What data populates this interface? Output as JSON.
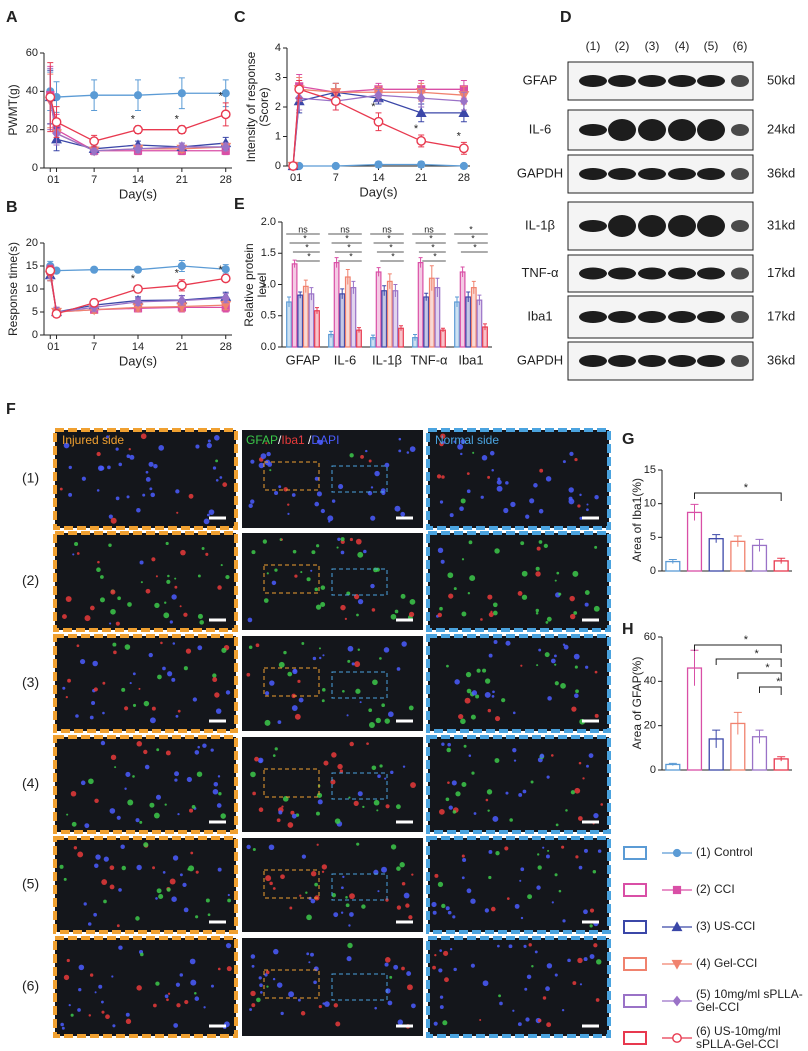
{
  "panel_labels": [
    "A",
    "B",
    "C",
    "D",
    "E",
    "F",
    "G",
    "H"
  ],
  "chart_data": [
    {
      "type": "line",
      "y_label": "PWMT(g)",
      "x_label": "Day(s)",
      "x": [
        0,
        1,
        7,
        14,
        21,
        28
      ],
      "xlim": [
        -1,
        29
      ],
      "xticks": [
        0,
        1,
        7,
        14,
        21,
        28
      ],
      "ylim": [
        0,
        60
      ],
      "yticks": [
        0,
        20,
        40,
        60
      ],
      "series": [
        {
          "name": "(1) Control",
          "color": "#5b9bd5",
          "marker": "circle",
          "values": [
            40,
            37,
            38,
            38,
            39,
            39
          ],
          "errors": [
            10,
            8,
            8,
            8,
            8,
            7
          ]
        },
        {
          "name": "(2) CCI",
          "color": "#d94fa6",
          "marker": "square",
          "values": [
            38,
            20,
            9,
            9,
            9,
            9
          ],
          "errors": [
            15,
            8,
            2,
            2,
            2,
            2
          ]
        },
        {
          "name": "(3) US-CCI",
          "color": "#3b47a8",
          "marker": "triangle",
          "values": [
            37,
            15,
            10,
            12,
            11,
            13
          ],
          "errors": [
            14,
            6,
            2,
            2,
            2,
            3
          ]
        },
        {
          "name": "(4) Gel-CCI",
          "color": "#f0826e",
          "marker": "triangle-down",
          "values": [
            35,
            18,
            9,
            10,
            10,
            11
          ],
          "errors": [
            14,
            6,
            2,
            2,
            2,
            2
          ]
        },
        {
          "name": "(5) 10mg/ml sPLLA-Gel-CCI",
          "color": "#9a72c7",
          "marker": "diamond",
          "values": [
            36,
            18,
            9,
            10,
            11,
            11
          ],
          "errors": [
            16,
            6,
            2,
            2,
            2,
            2
          ]
        },
        {
          "name": "(6) US-10mg/ml sPLLA-Gel-CCI",
          "color": "#e8394f",
          "marker": "open-circle",
          "values": [
            37,
            24,
            14,
            20,
            20,
            28
          ],
          "errors": [
            18,
            8,
            3,
            2,
            2,
            6
          ]
        }
      ],
      "annotations": [
        {
          "text": "*",
          "x": 14,
          "series": 5
        },
        {
          "text": "*",
          "x": 21,
          "series": 5
        },
        {
          "text": "*",
          "x": 28,
          "series": 5
        }
      ]
    },
    {
      "type": "line",
      "y_label": "Response time(s)",
      "x_label": "Day(s)",
      "x": [
        0,
        1,
        7,
        14,
        21,
        28
      ],
      "xlim": [
        -1,
        29
      ],
      "xticks": [
        0,
        1,
        7,
        14,
        21,
        28
      ],
      "ylim": [
        0,
        20
      ],
      "yticks": [
        0,
        5,
        10,
        15,
        20
      ],
      "series": [
        {
          "color": "#5b9bd5",
          "marker": "circle",
          "values": [
            15,
            14,
            14.2,
            14.2,
            15,
            14.3
          ],
          "errors": [
            1,
            0.5,
            0.4,
            0.5,
            1.2,
            1
          ]
        },
        {
          "color": "#d94fa6",
          "marker": "square",
          "values": [
            14,
            5,
            5.5,
            5.8,
            6,
            6
          ],
          "errors": [
            1.2,
            1,
            0.8,
            0.8,
            1,
            1
          ]
        },
        {
          "color": "#3b47a8",
          "marker": "triangle",
          "values": [
            13,
            5,
            6.5,
            7.5,
            7.6,
            8.3
          ],
          "errors": [
            1.2,
            1,
            0.8,
            0.8,
            1,
            1
          ]
        },
        {
          "color": "#f0826e",
          "marker": "triangle-down",
          "values": [
            13,
            5,
            5.5,
            6,
            6.2,
            6.5
          ],
          "errors": [
            1.2,
            1,
            0.8,
            0.8,
            1,
            1
          ]
        },
        {
          "color": "#9a72c7",
          "marker": "diamond",
          "values": [
            13.5,
            5,
            6,
            7.2,
            7.5,
            8
          ],
          "errors": [
            1.2,
            1,
            0.8,
            0.8,
            1,
            1
          ]
        },
        {
          "color": "#e8394f",
          "marker": "open-circle",
          "values": [
            14,
            4.6,
            7,
            10,
            10.8,
            12.3
          ],
          "errors": [
            1,
            0.8,
            0.8,
            0.8,
            1.2,
            0.5
          ]
        }
      ],
      "annotations": [
        {
          "text": "*",
          "x": 14,
          "series": 5
        },
        {
          "text": "*",
          "x": 21,
          "series": 5
        },
        {
          "text": "*",
          "x": 28,
          "series": 5
        }
      ]
    },
    {
      "type": "line",
      "y_label": "Intensity of response (Score)",
      "x_label": "Day(s)",
      "x": [
        0,
        1,
        7,
        14,
        21,
        28
      ],
      "xlim": [
        -1,
        29
      ],
      "xticks": [
        0,
        1,
        7,
        14,
        21,
        28
      ],
      "ylim": [
        0,
        4
      ],
      "yticks": [
        0,
        1,
        2,
        3,
        4
      ],
      "series": [
        {
          "color": "#5b9bd5",
          "marker": "circle",
          "values": [
            0,
            0,
            0,
            0.05,
            0.05,
            0
          ],
          "errors": [
            0.05,
            0.05,
            0.05,
            0.1,
            0.1,
            0.05
          ]
        },
        {
          "color": "#d94fa6",
          "marker": "square",
          "values": [
            0,
            2.7,
            2.5,
            2.6,
            2.6,
            2.6
          ],
          "errors": [
            0.1,
            0.4,
            0.3,
            0.2,
            0.3,
            0.3
          ]
        },
        {
          "color": "#3b47a8",
          "marker": "triangle",
          "values": [
            0,
            2.2,
            2.5,
            2.3,
            1.8,
            1.8
          ],
          "errors": [
            0.1,
            0.4,
            0.3,
            0.2,
            0.3,
            0.3
          ]
        },
        {
          "color": "#f0826e",
          "marker": "triangle-down",
          "values": [
            0,
            2.6,
            2.5,
            2.5,
            2.5,
            2.4
          ],
          "errors": [
            0.1,
            0.4,
            0.3,
            0.2,
            0.3,
            0.3
          ]
        },
        {
          "color": "#9a72c7",
          "marker": "diamond",
          "values": [
            0,
            2.3,
            2.2,
            2.4,
            2.3,
            2.2
          ],
          "errors": [
            0.1,
            0.4,
            0.3,
            0.2,
            0.3,
            0.3
          ]
        },
        {
          "color": "#e8394f",
          "marker": "open-circle",
          "values": [
            0,
            2.6,
            2.2,
            1.5,
            0.85,
            0.6
          ],
          "errors": [
            0.1,
            0.3,
            0.3,
            0.3,
            0.2,
            0.2
          ]
        }
      ],
      "annotations": [
        {
          "text": "*",
          "x": 14,
          "series": 5
        },
        {
          "text": "*",
          "x": 21,
          "series": 5
        },
        {
          "text": "*",
          "x": 28,
          "series": 5
        }
      ]
    },
    {
      "type": "grouped-bar",
      "y_label": "Relative protein level",
      "categories": [
        "GFAP",
        "IL-6",
        "IL-1β",
        "TNF-α",
        "Iba1"
      ],
      "ylim": [
        0,
        2
      ],
      "yticks": [
        {
          "value": 0,
          "label": "0.0"
        },
        {
          "value": 0.5,
          "label": "0.5"
        },
        {
          "value": 1,
          "label": "1.0"
        },
        {
          "value": 1.5,
          "label": "1.5"
        },
        {
          "value": 2,
          "label": "2.0"
        }
      ],
      "fill_opacity": 0.3,
      "series": [
        {
          "color": "#5b9bd5",
          "values": [
            0.72,
            0.2,
            0.15,
            0.15,
            0.72
          ],
          "errors": [
            0.08,
            0.05,
            0.04,
            0.05,
            0.08
          ]
        },
        {
          "color": "#d94fa6",
          "values": [
            1.33,
            1.35,
            1.2,
            1.35,
            1.2
          ],
          "errors": [
            0.06,
            0.08,
            0.07,
            0.08,
            0.08
          ]
        },
        {
          "color": "#3b47a8",
          "values": [
            0.83,
            0.85,
            0.9,
            0.8,
            0.8
          ],
          "errors": [
            0.05,
            0.08,
            0.08,
            0.06,
            0.08
          ]
        },
        {
          "color": "#f0826e",
          "values": [
            0.97,
            1.12,
            1.05,
            1.1,
            0.95
          ],
          "errors": [
            0.1,
            0.12,
            0.12,
            0.2,
            0.1
          ]
        },
        {
          "color": "#9a72c7",
          "values": [
            0.85,
            0.95,
            0.9,
            0.95,
            0.75
          ],
          "errors": [
            0.1,
            0.1,
            0.1,
            0.15,
            0.08
          ]
        },
        {
          "color": "#e8394f",
          "values": [
            0.58,
            0.27,
            0.3,
            0.27,
            0.32
          ],
          "errors": [
            0.05,
            0.04,
            0.04,
            0.03,
            0.05
          ]
        }
      ],
      "significance": [
        [
          "ns",
          "*",
          "*",
          "*"
        ],
        [
          "ns",
          "*",
          "*",
          "*"
        ],
        [
          "ns",
          "*",
          "*",
          "*"
        ],
        [
          "ns",
          "*",
          "*",
          "*"
        ],
        [
          "*",
          "*",
          "*"
        ]
      ]
    },
    {
      "type": "bar",
      "y_label": "Area of Iba1(%)",
      "ylim": [
        0,
        15
      ],
      "yticks": [
        0,
        5,
        10,
        15
      ],
      "fill_opacity": 0,
      "values": [
        1.4,
        8.7,
        4.8,
        4.4,
        3.8,
        1.5
      ],
      "errors": [
        0.3,
        1.2,
        0.6,
        0.8,
        0.9,
        0.4
      ],
      "colors": [
        "#5b9bd5",
        "#d94fa6",
        "#3b47a8",
        "#f0826e",
        "#9a72c7",
        "#e8394f"
      ],
      "annotations": [
        {
          "text": "*",
          "from": 1,
          "to": 5
        }
      ]
    },
    {
      "type": "bar",
      "y_label": "Area of GFAP(%)",
      "ylim": [
        0,
        60
      ],
      "yticks": [
        0,
        20,
        40,
        60
      ],
      "fill_opacity": 0,
      "values": [
        2.5,
        46,
        14,
        21,
        15,
        5
      ],
      "errors": [
        0.5,
        8,
        4,
        5,
        3,
        1
      ],
      "colors": [
        "#5b9bd5",
        "#d94fa6",
        "#3b47a8",
        "#f0826e",
        "#9a72c7",
        "#e8394f"
      ],
      "annotations": [
        {
          "text": "*",
          "from": 1,
          "to": 5
        },
        {
          "text": "*",
          "from": 2,
          "to": 5
        },
        {
          "text": "*",
          "from": 3,
          "to": 5
        },
        {
          "text": "*",
          "from": 4,
          "to": 5
        }
      ]
    }
  ],
  "blot": {
    "lanes": [
      "(1)",
      "(2)",
      "(3)",
      "(4)",
      "(5)",
      "(6)"
    ],
    "rows": [
      {
        "label": "GFAP",
        "size": "50kd"
      },
      {
        "label": "IL-6",
        "size": "24kd"
      },
      {
        "label": "GAPDH",
        "size": "36kd"
      },
      {
        "label": "IL-1β",
        "size": "31kd"
      },
      {
        "label": "TNF-α",
        "size": "17kd"
      },
      {
        "label": "Iba1",
        "size": "17kd"
      },
      {
        "label": "GAPDH",
        "size": "36kd"
      }
    ]
  },
  "micrographs": {
    "injured": {
      "text": "Injured side",
      "color": "#f0a030"
    },
    "normal": {
      "text": "Normal side",
      "color": "#4aa3df"
    },
    "stain": [
      {
        "text": "GFAP",
        "color": "#3cc94a"
      },
      {
        "text": "/",
        "color": "#ffffff"
      },
      {
        "text": "Iba1",
        "color": "#e83a3a"
      },
      {
        "text": " /",
        "color": "#ffffff"
      },
      {
        "text": "DAPI",
        "color": "#4a5cff"
      }
    ],
    "rows": [
      "(1)",
      "(2)",
      "(3)",
      "(4)",
      "(5)",
      "(6)"
    ]
  }
}
